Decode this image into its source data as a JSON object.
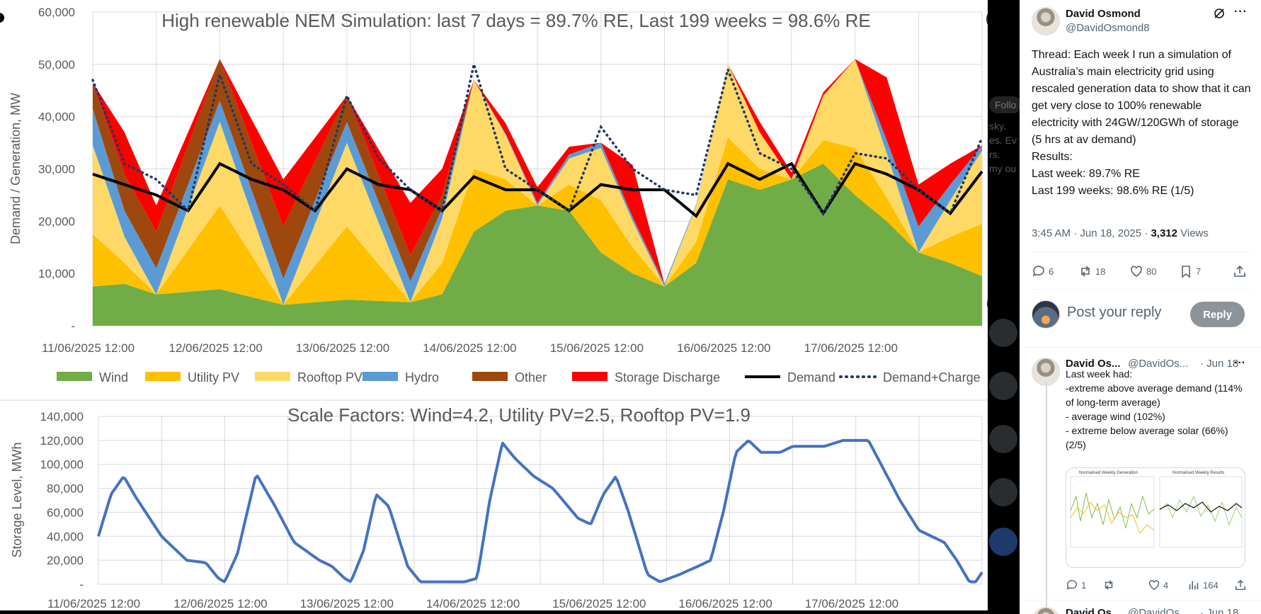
{
  "viewer": {
    "expand_icon": "double-chevron-right-icon",
    "next_icon": "arrow-right-icon",
    "chart_title": "High renewable NEM Simulation: last 7 days = 89.7% RE, Last 199 weeks = 98.6% RE",
    "chart_subtitle": "Scale Factors: Wind=4.2, Utility PV=2.5, Rooftop PV=1.9"
  },
  "chart_data": [
    {
      "type": "area",
      "title": "High renewable NEM Simulation: last 7 days = 89.7% RE, Last 199 weeks = 98.6% RE",
      "ylabel": "Demand / Generation, MW",
      "ylim": [
        0,
        60000
      ],
      "yticks": [
        "-",
        "10,000",
        "20,000",
        "30,000",
        "40,000",
        "50,000",
        "60,000"
      ],
      "ytick_values": [
        0,
        10000,
        20000,
        30000,
        40000,
        50000,
        60000
      ],
      "xticks": [
        "11/06/2025 12:00",
        "12/06/2025 12:00",
        "13/06/2025 12:00",
        "14/06/2025 12:00",
        "15/06/2025 12:00",
        "16/06/2025 12:00",
        "17/06/2025 12:00"
      ],
      "xlim_days": [
        0,
        7
      ],
      "grid": true,
      "legend_position": "bottom",
      "stacked": true,
      "series": [
        {
          "name": "Wind",
          "color": "#70ad47",
          "kind": "area",
          "points": [
            [
              0,
              7500
            ],
            [
              0.25,
              8000
            ],
            [
              0.5,
              6000
            ],
            [
              1.0,
              7000
            ],
            [
              1.5,
              4000
            ],
            [
              2.0,
              5000
            ],
            [
              2.5,
              4500
            ],
            [
              2.75,
              6000
            ],
            [
              3.0,
              18000
            ],
            [
              3.25,
              22000
            ],
            [
              3.5,
              23000
            ],
            [
              3.75,
              22000
            ],
            [
              4.0,
              14000
            ],
            [
              4.25,
              10000
            ],
            [
              4.5,
              7500
            ],
            [
              4.75,
              12000
            ],
            [
              5.0,
              28000
            ],
            [
              5.25,
              26000
            ],
            [
              5.5,
              28000
            ],
            [
              5.75,
              31000
            ],
            [
              6.0,
              25000
            ],
            [
              6.25,
              20000
            ],
            [
              6.5,
              14000
            ],
            [
              6.75,
              12000
            ],
            [
              7.0,
              9500
            ]
          ]
        },
        {
          "name": "Utility PV",
          "color": "#ffc000",
          "kind": "area",
          "points": [
            [
              0,
              10000
            ],
            [
              0.25,
              4000
            ],
            [
              0.5,
              0
            ],
            [
              1.0,
              16000
            ],
            [
              1.5,
              0
            ],
            [
              2.0,
              14000
            ],
            [
              2.5,
              0
            ],
            [
              3.0,
              12000
            ],
            [
              3.5,
              0
            ],
            [
              4.0,
              10000
            ],
            [
              4.5,
              0
            ],
            [
              5.0,
              8000
            ],
            [
              5.5,
              0
            ],
            [
              6.0,
              9000
            ],
            [
              6.5,
              0
            ],
            [
              7.0,
              10000
            ]
          ]
        },
        {
          "name": "Rooftop PV",
          "color": "#ffd966",
          "kind": "area",
          "points": [
            [
              0,
              17000
            ],
            [
              0.25,
              5000
            ],
            [
              0.5,
              0
            ],
            [
              1.0,
              16000
            ],
            [
              1.5,
              0
            ],
            [
              2.0,
              16000
            ],
            [
              2.5,
              0
            ],
            [
              3.0,
              17000
            ],
            [
              3.5,
              0
            ],
            [
              4.0,
              10000
            ],
            [
              4.5,
              0
            ],
            [
              5.0,
              14000
            ],
            [
              5.5,
              0
            ],
            [
              6.0,
              17000
            ],
            [
              6.5,
              0
            ],
            [
              7.0,
              14000
            ]
          ]
        },
        {
          "name": "Hydro",
          "color": "#5b9bd5",
          "kind": "area",
          "points": [
            [
              0,
              7000
            ],
            [
              0.25,
              5000
            ],
            [
              0.5,
              5000
            ],
            [
              1.0,
              4000
            ],
            [
              1.5,
              5000
            ],
            [
              2.0,
              4000
            ],
            [
              2.5,
              4000
            ],
            [
              3.0,
              0
            ],
            [
              4.0,
              1000
            ],
            [
              5.0,
              0
            ],
            [
              6.0,
              0
            ],
            [
              6.5,
              5000
            ],
            [
              7.0,
              1000
            ]
          ]
        },
        {
          "name": "Other",
          "color": "#9e480e",
          "kind": "area",
          "points": [
            [
              0,
              5000
            ],
            [
              0.25,
              7000
            ],
            [
              0.5,
              7000
            ],
            [
              1.0,
              8000
            ],
            [
              1.5,
              10000
            ],
            [
              2.0,
              5000
            ],
            [
              2.5,
              5000
            ],
            [
              3.0,
              0
            ],
            [
              7.0,
              0
            ]
          ]
        },
        {
          "name": "Storage Discharge",
          "color": "#ff0000",
          "kind": "area",
          "points": [
            [
              0,
              0
            ],
            [
              0.25,
              8000
            ],
            [
              0.5,
              5000
            ],
            [
              1.0,
              0
            ],
            [
              1.5,
              9000
            ],
            [
              2.0,
              0
            ],
            [
              2.5,
              10000
            ],
            [
              3.0,
              0
            ],
            [
              3.25,
              2000
            ],
            [
              3.5,
              3000
            ],
            [
              4.0,
              0
            ],
            [
              4.25,
              10000
            ],
            [
              4.5,
              0
            ],
            [
              5.0,
              0
            ],
            [
              5.25,
              2000
            ],
            [
              6.0,
              0
            ],
            [
              6.25,
              12000
            ],
            [
              6.5,
              8000
            ],
            [
              7.0,
              0
            ]
          ]
        },
        {
          "name": "Demand",
          "color": "#000000",
          "kind": "line",
          "points": [
            [
              0,
              29000
            ],
            [
              0.25,
              27000
            ],
            [
              0.5,
              25000
            ],
            [
              0.75,
              22000
            ],
            [
              1.0,
              31000
            ],
            [
              1.25,
              28000
            ],
            [
              1.5,
              26000
            ],
            [
              1.75,
              22000
            ],
            [
              2.0,
              30000
            ],
            [
              2.25,
              27000
            ],
            [
              2.5,
              26000
            ],
            [
              2.75,
              22000
            ],
            [
              3.0,
              28500
            ],
            [
              3.25,
              26000
            ],
            [
              3.5,
              26000
            ],
            [
              3.75,
              22000
            ],
            [
              4.0,
              27000
            ],
            [
              4.25,
              26000
            ],
            [
              4.5,
              26000
            ],
            [
              4.75,
              21000
            ],
            [
              5.0,
              31000
            ],
            [
              5.25,
              28000
            ],
            [
              5.5,
              31000
            ],
            [
              5.75,
              21500
            ],
            [
              6.0,
              31000
            ],
            [
              6.25,
              29000
            ],
            [
              6.5,
              26000
            ],
            [
              6.75,
              21500
            ],
            [
              7.0,
              29500
            ]
          ]
        },
        {
          "name": "Demand+Charge",
          "color": "#203864",
          "kind": "dotted",
          "points": [
            [
              0,
              47000
            ],
            [
              0.25,
              31000
            ],
            [
              0.5,
              28000
            ],
            [
              0.75,
              22000
            ],
            [
              1.0,
              48000
            ],
            [
              1.25,
              31000
            ],
            [
              1.5,
              27000
            ],
            [
              1.75,
              22000
            ],
            [
              2.0,
              44000
            ],
            [
              2.25,
              32000
            ],
            [
              2.5,
              26000
            ],
            [
              2.75,
              22000
            ],
            [
              3.0,
              50000
            ],
            [
              3.25,
              30000
            ],
            [
              3.5,
              26000
            ],
            [
              3.75,
              22000
            ],
            [
              4.0,
              38000
            ],
            [
              4.25,
              30000
            ],
            [
              4.5,
              26000
            ],
            [
              4.75,
              25000
            ],
            [
              5.0,
              49000
            ],
            [
              5.25,
              33000
            ],
            [
              5.5,
              30000
            ],
            [
              5.75,
              21500
            ],
            [
              6.0,
              33000
            ],
            [
              6.25,
              32000
            ],
            [
              6.5,
              26000
            ],
            [
              6.75,
              21500
            ],
            [
              7.0,
              36000
            ]
          ]
        }
      ]
    },
    {
      "type": "line",
      "title": "Scale Factors: Wind=4.2, Utility PV=2.5, Rooftop PV=1.9",
      "ylabel": "Storage Level, MWh",
      "ylim": [
        0,
        140000
      ],
      "yticks": [
        "-",
        "20,000",
        "40,000",
        "60,000",
        "80,000",
        "100,000",
        "120,000",
        "140,000"
      ],
      "ytick_values": [
        0,
        20000,
        40000,
        60000,
        80000,
        100000,
        120000,
        140000
      ],
      "xticks": [
        "11/06/2025 12:00",
        "12/06/2025 12:00",
        "13/06/2025 12:00",
        "14/06/2025 12:00",
        "15/06/2025 12:00",
        "16/06/2025 12:00",
        "17/06/2025 12:00"
      ],
      "xlim_days": [
        0,
        7
      ],
      "grid": true,
      "series": [
        {
          "name": "Storage Level",
          "color": "#4472c4",
          "points": [
            [
              0,
              40000
            ],
            [
              0.1,
              75000
            ],
            [
              0.2,
              90000
            ],
            [
              0.3,
              72000
            ],
            [
              0.5,
              40000
            ],
            [
              0.7,
              20000
            ],
            [
              0.85,
              18000
            ],
            [
              0.95,
              5000
            ],
            [
              1.0,
              2000
            ],
            [
              1.1,
              25000
            ],
            [
              1.25,
              92000
            ],
            [
              1.4,
              65000
            ],
            [
              1.55,
              35000
            ],
            [
              1.75,
              20000
            ],
            [
              1.85,
              15000
            ],
            [
              1.95,
              5000
            ],
            [
              2.0,
              2000
            ],
            [
              2.1,
              28000
            ],
            [
              2.2,
              75000
            ],
            [
              2.3,
              65000
            ],
            [
              2.45,
              15000
            ],
            [
              2.55,
              2000
            ],
            [
              2.9,
              2000
            ],
            [
              3.0,
              5000
            ],
            [
              3.1,
              70000
            ],
            [
              3.2,
              118000
            ],
            [
              3.3,
              105000
            ],
            [
              3.45,
              90000
            ],
            [
              3.6,
              80000
            ],
            [
              3.8,
              55000
            ],
            [
              3.9,
              50000
            ],
            [
              4.0,
              75000
            ],
            [
              4.1,
              90000
            ],
            [
              4.2,
              60000
            ],
            [
              4.35,
              8000
            ],
            [
              4.45,
              2000
            ],
            [
              4.6,
              8000
            ],
            [
              4.75,
              15000
            ],
            [
              4.85,
              20000
            ],
            [
              4.95,
              60000
            ],
            [
              5.05,
              110000
            ],
            [
              5.15,
              120000
            ],
            [
              5.25,
              110000
            ],
            [
              5.4,
              110000
            ],
            [
              5.5,
              115000
            ],
            [
              5.75,
              115000
            ],
            [
              5.9,
              120000
            ],
            [
              6.1,
              120000
            ],
            [
              6.2,
              100000
            ],
            [
              6.35,
              70000
            ],
            [
              6.5,
              45000
            ],
            [
              6.7,
              35000
            ],
            [
              6.8,
              20000
            ],
            [
              6.9,
              2000
            ],
            [
              6.95,
              2000
            ],
            [
              7.0,
              10000
            ]
          ]
        }
      ]
    }
  ],
  "legend": [
    {
      "label": "Wind",
      "color": "#70ad47",
      "kind": "box"
    },
    {
      "label": "Utility PV",
      "color": "#ffc000",
      "kind": "box"
    },
    {
      "label": "Rooftop PV",
      "color": "#ffd966",
      "kind": "box"
    },
    {
      "label": "Hydro",
      "color": "#5b9bd5",
      "kind": "box"
    },
    {
      "label": "Other",
      "color": "#9e480e",
      "kind": "box"
    },
    {
      "label": "Storage Discharge",
      "color": "#ff0000",
      "kind": "box"
    },
    {
      "label": "Demand",
      "color": "#000000",
      "kind": "line"
    },
    {
      "label": "Demand+Charge",
      "color": "#203864",
      "kind": "dots"
    }
  ],
  "panel": {
    "tweet": {
      "name": "David Osmond",
      "handle": "@DavidOsmond8",
      "grok_icon": "grok-icon",
      "more_icon": "more-icon",
      "body": [
        "Thread: Each week I run a simulation of Australia’s main electricity grid using rescaled generation data to show that it can get very close to 100% renewable electricity with 24GW/120GWh of storage (5 hrs at av demand)",
        "Results:",
        "Last week: 89.7% RE",
        "Last 199 weeks: 98.6% RE (1/5)"
      ],
      "time": "3:45 AM · Jun 18, 2025 · ",
      "views_count": "3,312",
      "views_label": " Views",
      "actions": {
        "replies": "6",
        "reposts": "18",
        "likes": "80",
        "bookmarks": "7"
      }
    },
    "reply_box": {
      "placeholder": "Post your reply",
      "button": "Reply"
    },
    "reply": {
      "name": "David Os...",
      "handle": "@DavidOs...",
      "date": "· Jun 18",
      "body": [
        "Last week had:",
        "-extreme above average demand (114% of long-term average)",
        "- average wind (102%)",
        "- extreme below average solar (66%) (2/5)"
      ],
      "thumb_left_title": "Normalised Weekly Generation",
      "thumb_right_title": "Normalised Weekly Results",
      "actions": {
        "replies": "1",
        "reposts": "",
        "likes": "4",
        "views": "164"
      }
    },
    "next_reply": {
      "name": "David Os...",
      "handle": "@DavidOs...",
      "date": "· Jun 18"
    }
  },
  "background": {
    "ghost_lines": [
      "Follo",
      "sky.",
      "es. Ev",
      "rs.",
      "my ou"
    ]
  }
}
